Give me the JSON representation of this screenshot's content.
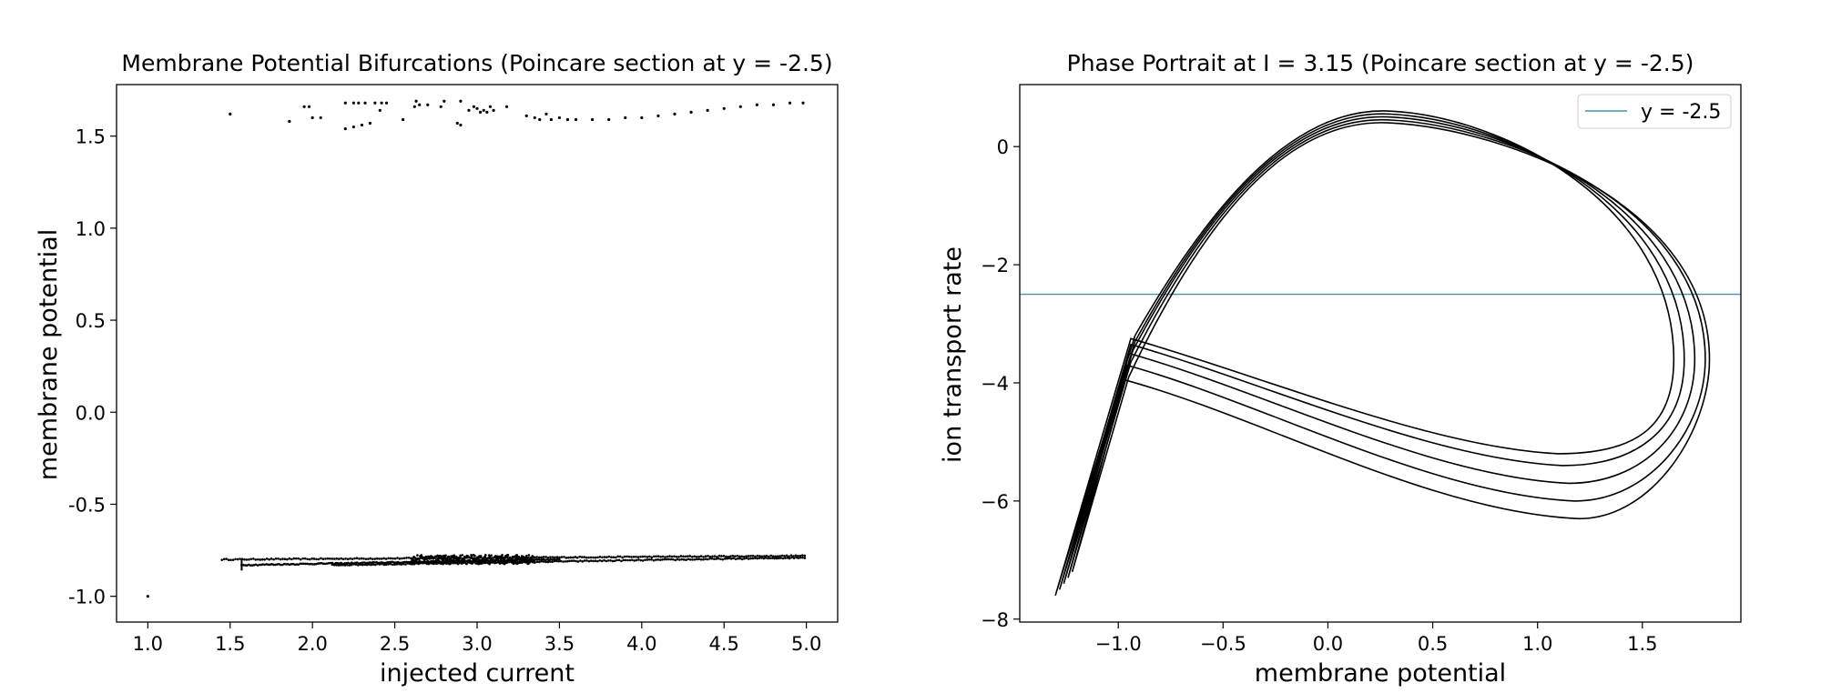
{
  "chart_data": [
    {
      "type": "scatter",
      "title": "Membrane Potential Bifurcations (Poincare section at y = -2.5)",
      "xlabel": "injected current",
      "ylabel": "membrane potential",
      "xlim": [
        0.81,
        5.19
      ],
      "ylim": [
        -1.14,
        1.78
      ],
      "xticks": [
        1.0,
        1.5,
        2.0,
        2.5,
        3.0,
        3.5,
        4.0,
        4.5,
        5.0
      ],
      "xtick_labels": [
        "1.0",
        "1.5",
        "2.0",
        "2.5",
        "3.0",
        "3.5",
        "4.0",
        "4.5",
        "5.0"
      ],
      "yticks": [
        -1.0,
        -0.5,
        0.0,
        0.5,
        1.0,
        1.5
      ],
      "ytick_labels": [
        "-1.0",
        "-0.5",
        "0.0",
        "0.5",
        "1.0",
        "1.5"
      ],
      "grid": false,
      "color": "#000000",
      "series": [
        {
          "points": [
            [
              1.0,
              -1.0
            ],
            [
              1.5,
              1.62
            ],
            [
              1.86,
              1.58
            ],
            [
              1.95,
              1.66
            ],
            [
              1.98,
              1.66
            ],
            [
              2.0,
              1.6
            ],
            [
              2.05,
              1.6
            ],
            [
              2.2,
              1.54
            ],
            [
              2.25,
              1.55
            ],
            [
              2.3,
              1.56
            ],
            [
              2.35,
              1.57
            ],
            [
              2.2,
              1.68
            ],
            [
              2.25,
              1.68
            ],
            [
              2.28,
              1.68
            ],
            [
              2.32,
              1.68
            ],
            [
              2.38,
              1.68
            ],
            [
              2.42,
              1.68
            ],
            [
              2.41,
              1.64
            ],
            [
              2.45,
              1.68
            ],
            [
              2.55,
              1.59
            ],
            [
              2.62,
              1.66
            ],
            [
              2.63,
              1.69
            ],
            [
              2.65,
              1.67
            ],
            [
              2.7,
              1.67
            ],
            [
              2.78,
              1.66
            ],
            [
              2.8,
              1.69
            ],
            [
              2.88,
              1.57
            ],
            [
              2.9,
              1.56
            ],
            [
              2.9,
              1.69
            ],
            [
              2.95,
              1.64
            ],
            [
              2.98,
              1.66
            ],
            [
              3.0,
              1.65
            ],
            [
              3.02,
              1.63
            ],
            [
              3.04,
              1.64
            ],
            [
              3.06,
              1.63
            ],
            [
              3.08,
              1.66
            ],
            [
              3.1,
              1.64
            ],
            [
              3.18,
              1.66
            ],
            [
              3.3,
              1.61
            ],
            [
              3.35,
              1.6
            ],
            [
              3.38,
              1.59
            ],
            [
              3.42,
              1.62
            ],
            [
              3.45,
              1.59
            ],
            [
              3.5,
              1.6
            ],
            [
              3.55,
              1.59
            ],
            [
              3.6,
              1.59
            ],
            [
              3.7,
              1.59
            ],
            [
              3.8,
              1.59
            ],
            [
              3.9,
              1.6
            ],
            [
              4.0,
              1.6
            ],
            [
              4.1,
              1.61
            ],
            [
              4.2,
              1.62
            ],
            [
              4.3,
              1.63
            ],
            [
              4.4,
              1.64
            ],
            [
              4.5,
              1.65
            ],
            [
              4.6,
              1.66
            ],
            [
              4.7,
              1.67
            ],
            [
              4.8,
              1.67
            ],
            [
              4.9,
              1.68
            ],
            [
              4.98,
              1.68
            ]
          ],
          "branches": [
            {
              "x_start": 1.45,
              "x_end": 4.99,
              "y_start": -0.8,
              "y_end": -0.78,
              "count": 260
            },
            {
              "x_start": 1.57,
              "x_end": 3.5,
              "y_start": -0.83,
              "y_end": -0.8,
              "count": 180
            },
            {
              "x_start": 2.12,
              "x_end": 4.99,
              "y_start": -0.83,
              "y_end": -0.79,
              "count": 220
            },
            {
              "x_start": 2.6,
              "x_end": 3.35,
              "y_start": -0.8,
              "y_end": -0.8,
              "count": 320,
              "spread": 0.025
            }
          ]
        }
      ]
    },
    {
      "type": "line",
      "title": "Phase Portrait at I = 3.15 (Poincare section at y = -2.5)",
      "xlabel": "membrane potential",
      "ylabel": "ion transport rate",
      "xlim": [
        -1.47,
        1.97
      ],
      "ylim": [
        -8.05,
        1.05
      ],
      "xticks": [
        -1.0,
        -0.5,
        0.0,
        0.5,
        1.0,
        1.5
      ],
      "xtick_labels": [
        "−1.0",
        "−0.5",
        "0.0",
        "0.5",
        "1.0",
        "1.5"
      ],
      "yticks": [
        -8,
        -6,
        -4,
        -2,
        0
      ],
      "ytick_labels": [
        "−8",
        "−6",
        "−4",
        "−2",
        "0"
      ],
      "grid": false,
      "legend": {
        "entries": [
          "y = -2.5"
        ],
        "placement": "top-right"
      },
      "hline": {
        "y": -2.5,
        "color": "#4a90a8"
      },
      "trajectory_color": "#000000",
      "orbits": [
        {
          "peak_y": 0.6,
          "knee_x": -0.92,
          "knee_y": -3.2,
          "bottom_x": 1.1,
          "bottom_y": -5.2,
          "right_x": 1.65
        },
        {
          "peak_y": 0.55,
          "knee_x": -0.92,
          "knee_y": -3.3,
          "bottom_x": 1.12,
          "bottom_y": -5.4,
          "right_x": 1.7
        },
        {
          "peak_y": 0.5,
          "knee_x": -0.93,
          "knee_y": -3.45,
          "bottom_x": 1.15,
          "bottom_y": -5.7,
          "right_x": 1.75
        },
        {
          "peak_y": 0.45,
          "knee_x": -0.94,
          "knee_y": -3.65,
          "bottom_x": 1.18,
          "bottom_y": -6.0,
          "right_x": 1.8
        },
        {
          "peak_y": 0.4,
          "knee_x": -0.95,
          "knee_y": -3.9,
          "bottom_x": 1.2,
          "bottom_y": -6.3,
          "right_x": 1.82
        }
      ],
      "tail": {
        "x": -1.3,
        "y": -7.6
      }
    }
  ]
}
